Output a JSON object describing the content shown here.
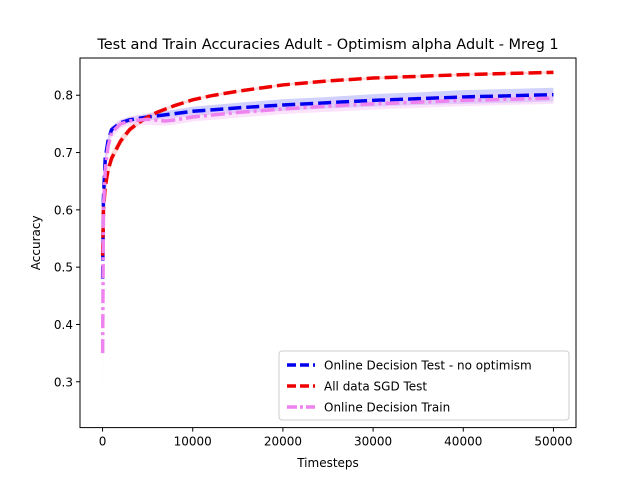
{
  "chart_data": {
    "type": "line",
    "title": "Test and Train Accuracies Adult - Optimism alpha Adult - Mreg 1",
    "xlabel": "Timesteps",
    "ylabel": "Accuracy",
    "xlim": [
      -2500,
      52500
    ],
    "ylim": [
      0.22,
      0.865
    ],
    "xticks": [
      0,
      10000,
      20000,
      30000,
      40000,
      50000
    ],
    "xtick_labels": [
      "0",
      "10000",
      "20000",
      "30000",
      "40000",
      "50000"
    ],
    "yticks": [
      0.3,
      0.4,
      0.5,
      0.6,
      0.7,
      0.8
    ],
    "ytick_labels": [
      "0.3",
      "0.4",
      "0.5",
      "0.6",
      "0.7",
      "0.8"
    ],
    "grid": false,
    "legend_position": "lower-right",
    "series": [
      {
        "name": "Online Decision Test - no optimism",
        "color": "#0000ee",
        "band_color": "#9999ff",
        "style": "dashed",
        "x": [
          10,
          100,
          300,
          600,
          1000,
          2000,
          3000,
          5000,
          8000,
          10000,
          15000,
          20000,
          25000,
          30000,
          35000,
          40000,
          45000,
          50000
        ],
        "y": [
          0.48,
          0.62,
          0.69,
          0.72,
          0.74,
          0.752,
          0.757,
          0.762,
          0.768,
          0.772,
          0.778,
          0.783,
          0.787,
          0.791,
          0.794,
          0.797,
          0.799,
          0.801
        ],
        "band": [
          0.0,
          0.02,
          0.012,
          0.008,
          0.006,
          0.005,
          0.005,
          0.006,
          0.007,
          0.008,
          0.009,
          0.01,
          0.01,
          0.011,
          0.011,
          0.012,
          0.012,
          0.012
        ]
      },
      {
        "name": "All data SGD Test",
        "color": "#ee0000",
        "band_color": "#ffaaaa",
        "style": "dashed",
        "x": [
          10,
          100,
          300,
          600,
          1000,
          2000,
          3000,
          4000,
          5000,
          6000,
          8000,
          10000,
          12000,
          15000,
          20000,
          25000,
          30000,
          35000,
          40000,
          45000,
          50000
        ],
        "y": [
          0.52,
          0.6,
          0.64,
          0.668,
          0.69,
          0.72,
          0.74,
          0.752,
          0.762,
          0.77,
          0.782,
          0.792,
          0.799,
          0.807,
          0.818,
          0.825,
          0.83,
          0.833,
          0.836,
          0.838,
          0.84
        ],
        "band": [
          0.0,
          0.02,
          0.015,
          0.012,
          0.01,
          0.008,
          0.006,
          0.005,
          0.004,
          0.003,
          0.003,
          0.002,
          0.002,
          0.002,
          0.002,
          0.002,
          0.002,
          0.002,
          0.002,
          0.002,
          0.002
        ]
      },
      {
        "name": "Online Decision Train",
        "color": "#ee82ee",
        "band_color": "#f6c2f6",
        "style": "dashdot",
        "x": [
          10,
          100,
          300,
          600,
          1000,
          2000,
          3000,
          5000,
          7000,
          8000,
          10000,
          15000,
          20000,
          25000,
          30000,
          35000,
          40000,
          45000,
          50000
        ],
        "y": [
          0.35,
          0.6,
          0.67,
          0.71,
          0.735,
          0.75,
          0.755,
          0.758,
          0.755,
          0.757,
          0.762,
          0.77,
          0.776,
          0.781,
          0.785,
          0.788,
          0.791,
          0.793,
          0.795
        ],
        "band": [
          0.1,
          0.04,
          0.02,
          0.014,
          0.01,
          0.008,
          0.008,
          0.01,
          0.008,
          0.008,
          0.008,
          0.009,
          0.009,
          0.01,
          0.01,
          0.01,
          0.01,
          0.01,
          0.01
        ]
      }
    ]
  }
}
